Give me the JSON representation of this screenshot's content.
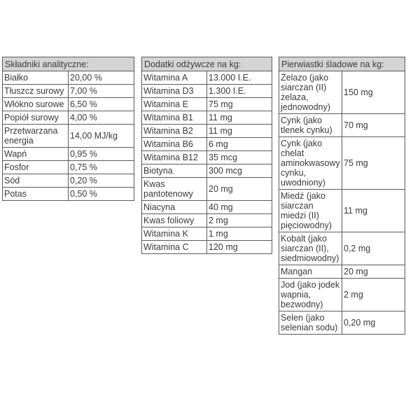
{
  "tables": [
    {
      "header": "Składniki analityczne:",
      "rows": [
        [
          "Białko",
          "20,00 %"
        ],
        [
          "Tłuszcz surowy",
          "7,00 %"
        ],
        [
          "Włókno surowe",
          "6,50 %"
        ],
        [
          "Popiół surowy",
          "4,00 %"
        ],
        [
          "Przetwarzana energia",
          "14,00 MJ/kg"
        ],
        [
          "Wapń",
          "0,95 %"
        ],
        [
          "Fosfor",
          "0,75 %"
        ],
        [
          "Sód",
          "0,20 %"
        ],
        [
          "Potas",
          "0,50 %"
        ]
      ]
    },
    {
      "header": "Dodatki odżywcze na kg:",
      "rows": [
        [
          "Witamina A",
          "13.000 I.E."
        ],
        [
          "Witamina D3",
          "1.300 I.E."
        ],
        [
          "Witamina E",
          "75 mg"
        ],
        [
          "Witamina B1",
          "11 mg"
        ],
        [
          "Witamina B2",
          "11 mg"
        ],
        [
          "Witamina B6",
          "6 mg"
        ],
        [
          "Witamina B12",
          "35 mcg"
        ],
        [
          "Biotyna",
          "300 mcg"
        ],
        [
          "Kwas pantotenowy",
          "20 mg"
        ],
        [
          "Niacyna",
          "40 mg"
        ],
        [
          "Kwas foliowy",
          "2 mg"
        ],
        [
          "Witamina K",
          "1 mg"
        ],
        [
          "Witamina C",
          "120 mg"
        ]
      ]
    },
    {
      "header": "Pierwiastki śladowe na kg:",
      "rows": [
        [
          "Żelazo (jako siarczan (II) żelaza, jednowodny)",
          "150 mg"
        ],
        [
          "Cynk (jako tlenek cynku)",
          "70 mg"
        ],
        [
          "Cynk (jako chelat aminokwasowy cynku, uwodniony)",
          "75 mg"
        ],
        [
          "Miedź (jako siarczan miedzi (II) pięciowodny)",
          "11 mg"
        ],
        [
          "Kobalt (jako siarczan (II), siedmiowodny)",
          "0,2 mg"
        ],
        [
          "Mangan",
          "20 mg"
        ],
        [
          "Jod (jako jodek wapnia, bezwodny)",
          "2 mg"
        ],
        [
          "Selen (jako selenian sodu)",
          "0,20 mg"
        ]
      ]
    }
  ]
}
